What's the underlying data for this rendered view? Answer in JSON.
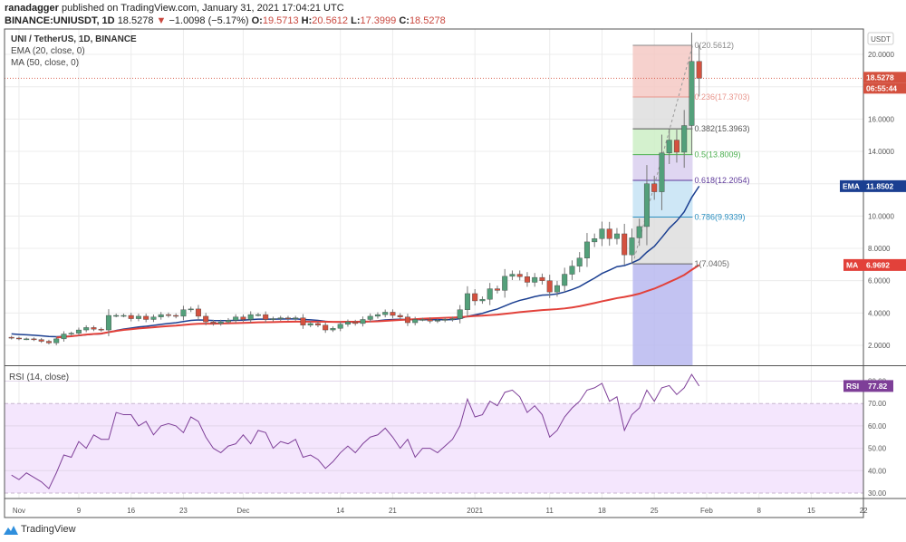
{
  "header": {
    "publisher": "ranadagger",
    "published_text": "published on TradingView.com, January 31, 2021 17:04:21 UTC",
    "symbol": "BINANCE:UNIUSDT, 1D",
    "last": "18.5278",
    "change": "−1.0098 (−5.17%)",
    "o_label": "O:",
    "o": "19.5713",
    "h_label": "H:",
    "h": "20.5612",
    "l_label": "L:",
    "l": "17.3999",
    "c_label": "C:",
    "c": "18.5278"
  },
  "legend": {
    "title": "UNI / TetherUS, 1D, BINANCE",
    "ema": "EMA (20, close, 0)",
    "ma": "MA (50, close, 0)",
    "rsi": "RSI (14, close)"
  },
  "price_axis": {
    "currency": "USDT",
    "last_price": "18.5278",
    "countdown": "06:55:44",
    "ema_tag": "EMA",
    "ema_value": "11.8502",
    "ma_tag": "MA",
    "ma_value": "6.9692",
    "rsi_tag": "RSI",
    "rsi_value": "77.82"
  },
  "branding": "TradingView",
  "colors": {
    "up": "#53a07a",
    "down": "#d4513f",
    "ema": "#1b3f91",
    "ma": "#e2413a",
    "rsi": "#7e3f98",
    "rsi_band": "#f4e6fd"
  },
  "chart_data": [
    {
      "type": "candlestick",
      "title": "UNI / TetherUS, 1D, BINANCE",
      "start_date": "2020-10-31",
      "closes": [
        2.45,
        2.4,
        2.4,
        2.35,
        2.25,
        2.15,
        2.4,
        2.7,
        2.75,
        2.95,
        3.1,
        3.0,
        2.95,
        3.85,
        3.85,
        3.85,
        3.65,
        3.8,
        3.6,
        3.75,
        3.9,
        3.85,
        3.8,
        4.2,
        4.25,
        3.8,
        3.45,
        3.35,
        3.45,
        3.55,
        3.75,
        3.6,
        3.9,
        3.9,
        3.6,
        3.65,
        3.7,
        3.65,
        3.7,
        3.25,
        3.35,
        3.25,
        2.95,
        3.05,
        3.3,
        3.45,
        3.35,
        3.6,
        3.8,
        3.9,
        4.05,
        3.85,
        3.75,
        3.4,
        3.6,
        3.6,
        3.5,
        3.55,
        3.6,
        3.65,
        4.2,
        5.2,
        4.75,
        4.85,
        5.5,
        5.4,
        6.27,
        6.4,
        6.25,
        5.9,
        6.2,
        6.0,
        5.3,
        5.7,
        6.4,
        6.9,
        7.4,
        8.4,
        8.6,
        9.2,
        8.6,
        8.9,
        7.6,
        8.65,
        9.35,
        12.0,
        11.5,
        13.9,
        14.7,
        13.95,
        15.6,
        19.57,
        18.5278
      ],
      "last_candle": {
        "open": 19.5713,
        "high": 20.5612,
        "low": 17.3999,
        "close": 18.5278
      },
      "y_ticks": [
        "2.0000",
        "4.0000",
        "6.0000",
        "8.0000",
        "10.0000",
        "14.0000",
        "16.0000",
        "20.0000"
      ],
      "y_tick_values": [
        2,
        4,
        6,
        8,
        10,
        14,
        16,
        20
      ],
      "ylim": [
        0.8,
        21.5
      ],
      "x_ticks": [
        "Nov",
        "9",
        "16",
        "23",
        "Dec",
        "14",
        "21",
        "2021",
        "11",
        "18",
        "25",
        "Feb",
        "8",
        "15",
        "22"
      ],
      "x_tick_day_offsets": [
        1,
        9,
        16,
        23,
        31,
        44,
        51,
        62,
        72,
        79,
        86,
        93,
        100,
        107,
        114
      ],
      "indicators": {
        "ema_period": 20,
        "ma_period": 50,
        "ema_last": 11.8502,
        "ma_last": 6.9692
      },
      "fibonacci": {
        "start_day_offset": 83,
        "end_day_offset": 91,
        "levels": [
          {
            "ratio": "0",
            "label": "0(20.5612)",
            "price": 20.5612,
            "color": "#888888",
            "fill": "#f5c9c4"
          },
          {
            "ratio": "0.236",
            "label": "0.236(17.3703)",
            "price": 17.3703,
            "color": "#e8958c",
            "fill": "#dedede"
          },
          {
            "ratio": "0.382",
            "label": "0.382(15.3963)",
            "price": 15.3963,
            "color": "#555555",
            "fill": "#cdeec6"
          },
          {
            "ratio": "0.5",
            "label": "0.5(13.8009)",
            "price": 13.8009,
            "color": "#4caf50",
            "fill": "#d9cfee"
          },
          {
            "ratio": "0.618",
            "label": "0.618(12.2054)",
            "price": 12.2054,
            "color": "#5e3a9a",
            "fill": "#c6e3f5"
          },
          {
            "ratio": "0.786",
            "label": "0.786(9.9339)",
            "price": 9.9339,
            "color": "#2a8fc0",
            "fill": "#dedede"
          },
          {
            "ratio": "1",
            "label": "1(7.0405)",
            "price": 7.0405,
            "color": "#666666",
            "fill": "#b8b8f0"
          }
        ]
      }
    },
    {
      "type": "line",
      "title": "RSI (14, close)",
      "values": [
        38,
        36,
        39,
        37,
        35,
        32,
        39,
        47,
        46,
        53,
        50,
        56,
        54,
        54,
        66,
        65,
        65,
        60,
        62,
        56,
        60,
        61,
        60,
        57,
        64,
        62,
        55,
        50,
        48,
        51,
        52,
        56,
        52,
        58,
        57,
        50,
        53,
        52,
        54,
        46,
        47,
        45,
        41,
        44,
        48,
        51,
        48,
        52,
        55,
        56,
        59,
        55,
        50,
        54,
        46,
        50,
        50,
        48,
        51,
        54,
        60,
        72,
        64,
        65,
        71,
        69,
        75,
        76,
        73,
        66,
        69,
        65,
        55,
        58,
        64,
        68,
        71,
        76,
        77,
        79,
        71,
        73,
        58,
        65,
        68,
        76,
        71,
        77,
        78,
        74,
        77,
        83,
        77.82
      ],
      "y_ticks": [
        "30.00",
        "40.00",
        "50.00",
        "60.00",
        "70.00",
        "80.00"
      ],
      "y_tick_values": [
        30,
        40,
        50,
        60,
        70,
        80
      ],
      "band": [
        30,
        70
      ],
      "ylim": [
        27,
        85
      ]
    }
  ]
}
